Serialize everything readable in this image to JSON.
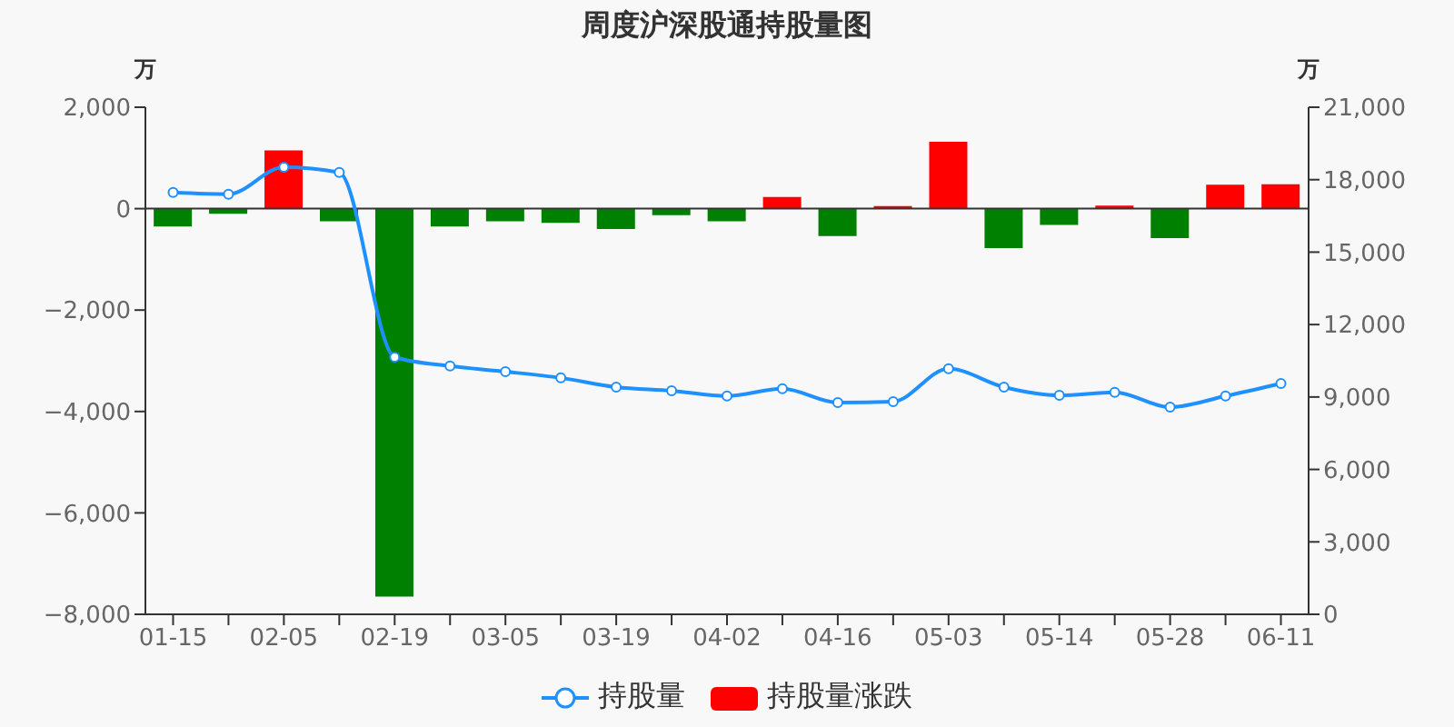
{
  "chart_data": {
    "type": "bar",
    "title": "周度沪深股通持股量图",
    "ylabel": "万",
    "y2label": "万",
    "categories": [
      "01-15",
      null,
      "02-05",
      null,
      "02-19",
      null,
      "03-05",
      null,
      "03-19",
      null,
      "04-02",
      null,
      "04-16",
      null,
      "05-03",
      null,
      "05-14",
      null,
      "05-28",
      null,
      "06-11"
    ],
    "series": [
      {
        "name": "持股量",
        "type": "line",
        "axis": "y2",
        "color": "#1e90ff",
        "marker": "circle",
        "values": [
          17470,
          17400,
          18520,
          18300,
          10650,
          10280,
          10050,
          9790,
          9410,
          9260,
          9040,
          9340,
          8770,
          8810,
          10170,
          9410,
          9070,
          9190,
          8580,
          9040,
          9560
        ]
      },
      {
        "name": "持股量涨跌",
        "color": "#ff0000",
        "values": [
          -350,
          -100,
          1150,
          -250,
          -7650,
          -350,
          -250,
          -280,
          -400,
          -130,
          -250,
          230,
          -540,
          50,
          1320,
          -780,
          -320,
          60,
          -580,
          470,
          480
        ],
        "colors": [
          "#008000",
          "#008000",
          "#ff0000",
          "#008000",
          "#008000",
          "#008000",
          "#008000",
          "#008000",
          "#008000",
          "#008000",
          "#008000",
          "#ff0000",
          "#008000",
          "#ff0000",
          "#ff0000",
          "#008000",
          "#008000",
          "#ff0000",
          "#008000",
          "#ff0000",
          "#ff0000"
        ]
      }
    ],
    "ylim": [
      -8000,
      2000
    ],
    "yticks": [
      {
        "value": -8000,
        "label": "−8,000"
      },
      {
        "value": -6000,
        "label": "−6,000"
      },
      {
        "value": -4000,
        "label": "−4,000"
      },
      {
        "value": -2000,
        "label": "−2,000"
      },
      0,
      {
        "value": 2000,
        "label": "2,000"
      }
    ],
    "y2lim": [
      0,
      21000
    ],
    "y2ticks": [
      0,
      {
        "value": 3000,
        "label": "3,000"
      },
      {
        "value": 6000,
        "label": "6,000"
      },
      {
        "value": 9000,
        "label": "9,000"
      },
      {
        "value": 12000,
        "label": "12,000"
      },
      {
        "value": 15000,
        "label": "15,000"
      },
      {
        "value": 18000,
        "label": "18,000"
      },
      {
        "value": 21000,
        "label": "21,000"
      }
    ],
    "legend": "bottom"
  }
}
